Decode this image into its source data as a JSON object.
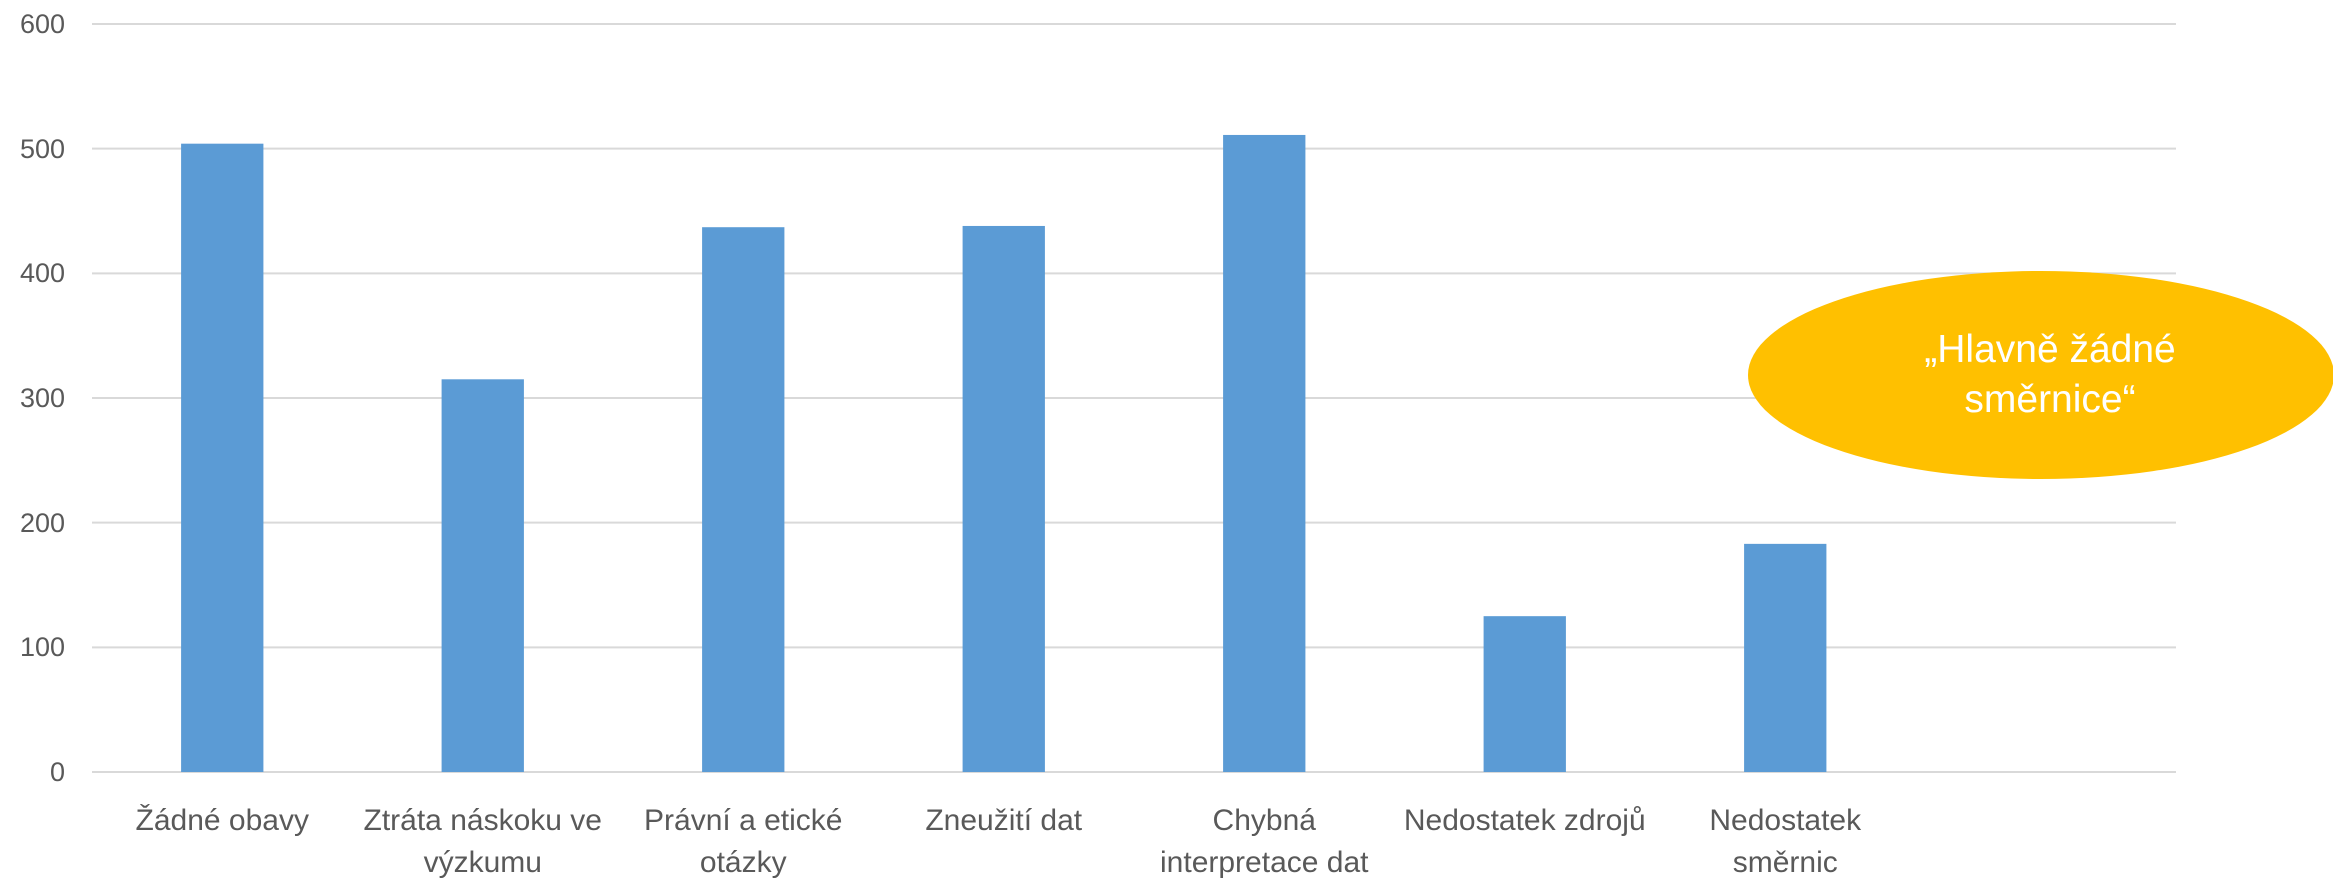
{
  "chart_data": {
    "type": "bar",
    "categories": [
      "Žádné obavy",
      "Ztráta náskoku ve výzkumu",
      "Právní a etické otázky",
      "Zneužití dat",
      "Chybná interpretace dat",
      "Nedostatek zdrojů",
      "Nedostatek směrnic",
      null
    ],
    "values": [
      504,
      315,
      437,
      438,
      511,
      125,
      183,
      null
    ],
    "color": "#5b9bd5",
    "ylim": [
      0,
      600
    ],
    "yticks": [
      0,
      100,
      200,
      300,
      400,
      500,
      600
    ],
    "grid": true,
    "annotation": "„Hlavně žádné směrnice“",
    "annotation_color": "#ffc000"
  }
}
